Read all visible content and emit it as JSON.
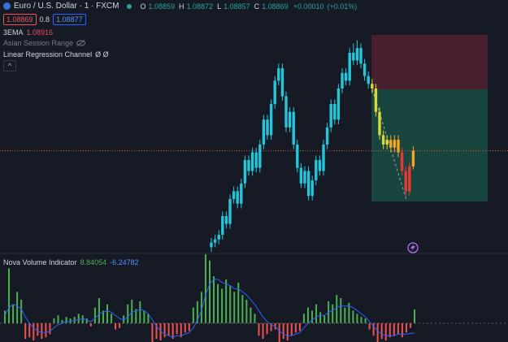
{
  "header": {
    "symbol": "Euro / U.S. Dollar · 1 · FXCM",
    "ohlc": [
      {
        "label": "O",
        "value": 1.08859
      },
      {
        "label": "H",
        "value": 1.08872
      },
      {
        "label": "L",
        "value": 1.08857
      },
      {
        "label": "C",
        "value": 1.08869
      }
    ],
    "change": {
      "value": 0.0001,
      "label": "+0.00010"
    },
    "change_percent": {
      "value": 0.01,
      "label": "(+0.01%)"
    }
  },
  "trade_buttons": {
    "sell": 1.08869,
    "spread": 0.8,
    "buy": 1.08877
  },
  "indicators": [
    {
      "name": "3EMA",
      "value": 1.08916
    },
    {
      "name": "Asian Session Range"
    },
    {
      "name": "Linear Regression Channel",
      "params": "Ø Ø"
    }
  ],
  "chart_data": [
    {
      "type": "candlestick",
      "ylim": [
        1.08803,
        1.08945
      ],
      "open": [
        1.08807,
        1.0881,
        1.08812,
        1.08815,
        1.08827,
        1.08822,
        1.08838,
        1.08843,
        1.08835,
        1.08848,
        1.08863,
        1.08856,
        1.08868,
        1.08858,
        1.08873,
        1.08889,
        1.08879,
        1.08899,
        1.08914,
        1.08922,
        1.08904,
        1.08884,
        1.08894,
        1.08873,
        1.08858,
        1.08848,
        1.08856,
        1.0884,
        1.0885,
        1.08863,
        1.08856,
        1.08873,
        1.08884,
        1.08899,
        1.08889,
        1.08909,
        1.08919,
        1.08914,
        1.08932,
        1.08927,
        1.08935,
        1.08925,
        1.08917,
        1.08912,
        1.08909,
        1.08894,
        1.08879,
        1.08873,
        1.08876,
        1.08871,
        1.08876,
        1.08868,
        1.08856,
        1.08843,
        1.08859
      ],
      "high": [
        1.08813,
        1.08815,
        1.08818,
        1.0883,
        1.0883,
        1.08841,
        1.08846,
        1.08846,
        1.08851,
        1.08866,
        1.08866,
        1.08871,
        1.08871,
        1.08876,
        1.08892,
        1.08892,
        1.08902,
        1.08917,
        1.08925,
        1.08925,
        1.08907,
        1.08897,
        1.08897,
        1.08876,
        1.08861,
        1.08859,
        1.08859,
        1.08853,
        1.08866,
        1.08866,
        1.08876,
        1.08887,
        1.08902,
        1.08902,
        1.08912,
        1.08922,
        1.08922,
        1.08935,
        1.08938,
        1.0894,
        1.08938,
        1.08928,
        1.0892,
        1.08915,
        1.08912,
        1.08897,
        1.08882,
        1.08879,
        1.08879,
        1.08879,
        1.08879,
        1.08871,
        1.08859,
        1.08862,
        1.08872
      ],
      "low": [
        1.08804,
        1.08807,
        1.08809,
        1.08812,
        1.08819,
        1.08819,
        1.08835,
        1.08832,
        1.08832,
        1.08845,
        1.08853,
        1.08853,
        1.08855,
        1.08855,
        1.0887,
        1.08876,
        1.08876,
        1.08896,
        1.08911,
        1.08901,
        1.08881,
        1.08881,
        1.0887,
        1.08855,
        1.08845,
        1.08845,
        1.08837,
        1.08837,
        1.08847,
        1.08853,
        1.08853,
        1.0887,
        1.08881,
        1.08886,
        1.08886,
        1.08906,
        1.08911,
        1.08911,
        1.08924,
        1.08924,
        1.08922,
        1.08914,
        1.08909,
        1.08906,
        1.08891,
        1.08876,
        1.0887,
        1.0887,
        1.08868,
        1.08868,
        1.08865,
        1.08853,
        1.0884,
        1.0884,
        1.08857
      ],
      "close": [
        1.0881,
        1.08812,
        1.08815,
        1.08827,
        1.08822,
        1.08838,
        1.08843,
        1.08835,
        1.08848,
        1.08863,
        1.08856,
        1.08868,
        1.08858,
        1.08873,
        1.08889,
        1.08879,
        1.08899,
        1.08914,
        1.08922,
        1.08904,
        1.08884,
        1.08894,
        1.08873,
        1.08858,
        1.08848,
        1.08856,
        1.0884,
        1.0885,
        1.08863,
        1.08856,
        1.08873,
        1.08884,
        1.08899,
        1.08889,
        1.08909,
        1.08919,
        1.08914,
        1.08932,
        1.08927,
        1.08935,
        1.08925,
        1.08917,
        1.08912,
        1.08909,
        1.08894,
        1.08879,
        1.08873,
        1.08876,
        1.08871,
        1.08876,
        1.08868,
        1.08856,
        1.08843,
        1.08859,
        1.08869
      ],
      "colors": [
        "#26c6da",
        "#26c6da",
        "#26c6da",
        "#26c6da",
        "#26c6da",
        "#26c6da",
        "#26c6da",
        "#26c6da",
        "#26c6da",
        "#26c6da",
        "#26c6da",
        "#26c6da",
        "#26c6da",
        "#26c6da",
        "#26c6da",
        "#26c6da",
        "#26c6da",
        "#26c6da",
        "#26c6da",
        "#26c6da",
        "#26c6da",
        "#26c6da",
        "#26c6da",
        "#26c6da",
        "#26c6da",
        "#26c6da",
        "#26c6da",
        "#26c6da",
        "#26c6da",
        "#26c6da",
        "#26c6da",
        "#26c6da",
        "#26c6da",
        "#26c6da",
        "#26c6da",
        "#26c6da",
        "#26c6da",
        "#26c6da",
        "#26c6da",
        "#26c6da",
        "#26c6da",
        "#26c6da",
        "#26c6da",
        "#d8d83c",
        "#d8d83c",
        "#d8d83c",
        "#d8d83c",
        "#d8d83c",
        "#f5a623",
        "#f5a623",
        "#f5a623",
        "#e53935",
        "#e53935",
        "#e53935",
        "#f5a623"
      ]
    },
    {
      "type": "bar",
      "title": "Nova Volume Indicator",
      "ylim": [
        -12,
        44
      ],
      "series": [
        {
          "positive_color": "#4caf50",
          "negative_color": "#ef5350",
          "values": [
            8,
            35,
            12,
            20,
            15,
            -10,
            -9,
            -11,
            -8,
            -10,
            -9,
            -7,
            3,
            5,
            2,
            4,
            3,
            4,
            6,
            5,
            3,
            -2,
            10,
            16,
            8,
            12,
            6,
            -4,
            -3,
            5,
            12,
            15,
            9,
            14,
            8,
            6,
            -12,
            -10,
            -11,
            -9,
            -8,
            -10,
            -7,
            -9,
            -6,
            -5,
            10,
            14,
            20,
            44,
            40,
            30,
            25,
            22,
            28,
            24,
            20,
            26,
            18,
            15,
            10,
            6,
            -8,
            -10,
            -7,
            -5,
            -4,
            -12,
            -10,
            -11,
            -8,
            -6,
            -5,
            6,
            10,
            8,
            12,
            7,
            5,
            14,
            12,
            18,
            16,
            10,
            13,
            8,
            6,
            4,
            3,
            -4,
            -8,
            -12,
            -10,
            -11,
            -9,
            -8,
            -7,
            -9,
            -6,
            -3,
            8.84054
          ]
        },
        {
          "color": "#2962ff",
          "values": [
            5,
            10,
            12,
            11,
            9,
            4,
            0,
            -3,
            -5,
            -6,
            -6,
            -5,
            -3,
            -1,
            0,
            1,
            1,
            2,
            2,
            3,
            2,
            1,
            3,
            6,
            7,
            8,
            7,
            5,
            3,
            2,
            4,
            7,
            8,
            9,
            8,
            6,
            2,
            -2,
            -5,
            -7,
            -8,
            -9,
            -8,
            -8,
            -7,
            -6,
            -3,
            2,
            8,
            18,
            25,
            28,
            28,
            26,
            25,
            24,
            22,
            22,
            20,
            18,
            15,
            12,
            8,
            4,
            1,
            -1,
            -2,
            -5,
            -7,
            -8,
            -8,
            -7,
            -6,
            -3,
            0,
            2,
            4,
            5,
            5,
            7,
            8,
            10,
            11,
            11,
            11,
            10,
            8,
            6,
            4,
            1,
            -2,
            -5,
            -7,
            -8,
            -8,
            -8,
            -7,
            -7,
            -7,
            -6.5,
            -6.24782
          ]
        }
      ]
    }
  ]
}
